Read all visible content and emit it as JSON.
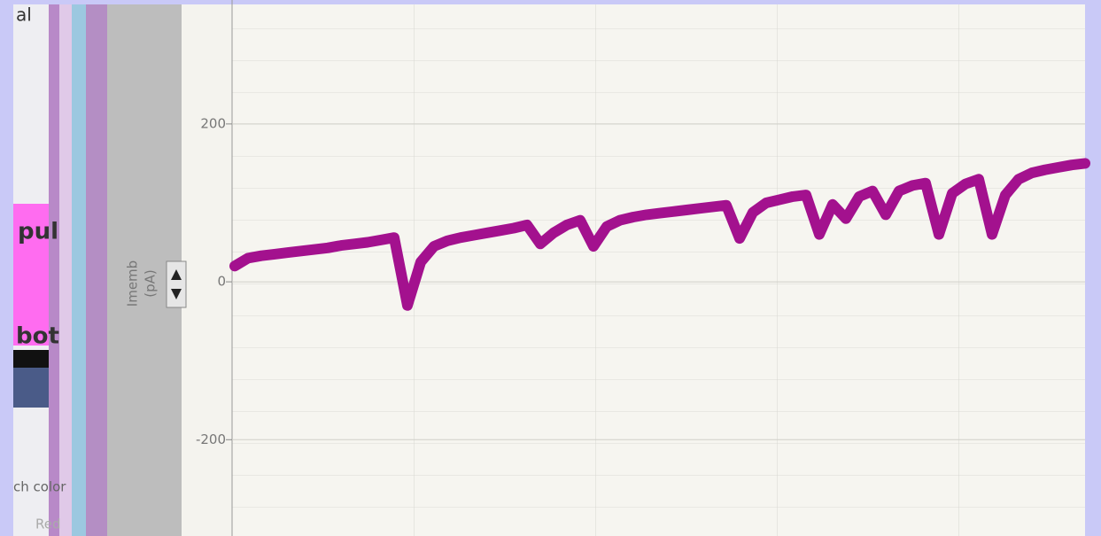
{
  "panel": {
    "texts": [
      "al",
      "pul",
      "bot",
      "ch color",
      "Red"
    ]
  },
  "chart_data": {
    "type": "line",
    "y_label": [
      "Imemb",
      "(pA)"
    ],
    "series": [
      {
        "name": null,
        "color": "#a3118e",
        "values": [
          20,
          30,
          33,
          35,
          37,
          39,
          41,
          43,
          46,
          48,
          50,
          53,
          56,
          -30,
          25,
          45,
          52,
          56,
          59,
          62,
          65,
          68,
          72,
          48,
          62,
          72,
          78,
          45,
          70,
          78,
          82,
          85,
          87,
          89,
          91,
          93,
          95,
          97,
          55,
          88,
          100,
          104,
          108,
          110,
          60,
          98,
          80,
          108,
          115,
          85,
          115,
          122,
          125,
          60,
          112,
          124,
          130,
          60,
          110,
          130,
          138,
          142,
          145,
          148,
          150
        ]
      }
    ],
    "ylim": [
      -322,
      357
    ],
    "yticks": [
      200,
      0,
      -200
    ],
    "grid": true
  }
}
